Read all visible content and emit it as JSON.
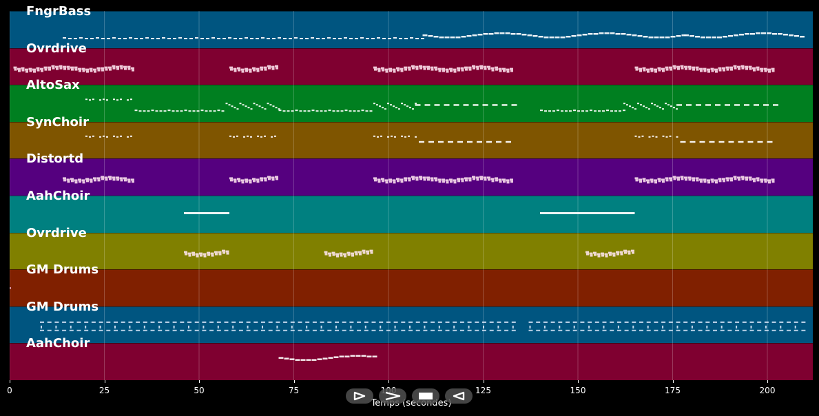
{
  "tracks": [
    {
      "name": "FngrBass",
      "color": "#005580"
    },
    {
      "name": "Ovrdrive",
      "color": "#7f0030"
    },
    {
      "name": "AltoSax",
      "color": "#007f20"
    },
    {
      "name": "SynChoir",
      "color": "#7f5500"
    },
    {
      "name": "Distortd",
      "color": "#55007f"
    },
    {
      "name": "AahChoir",
      "color": "#008080"
    },
    {
      "name": "Ovrdrive",
      "color": "#808000"
    },
    {
      "name": "GM Drums",
      "color": "#802000"
    },
    {
      "name": "GM Drums",
      "color": "#005580"
    },
    {
      "name": "AahChoir",
      "color": "#7f0030"
    }
  ],
  "xaxis": {
    "label": "Temps (secondes)",
    "ticks": [
      "0",
      "25",
      "50",
      "75",
      "100",
      "125",
      "150",
      "175",
      "200"
    ],
    "range": [
      0,
      212
    ]
  },
  "controls": [
    {
      "name": "play",
      "icon": "play-icon"
    },
    {
      "name": "forward",
      "icon": "forward-icon"
    },
    {
      "name": "stop",
      "icon": "stop-icon"
    },
    {
      "name": "rewind",
      "icon": "rewind-icon"
    }
  ],
  "segments": [
    {
      "track": 0,
      "start": 14,
      "end": 109,
      "style": "dash-small"
    },
    {
      "track": 0,
      "start": 109,
      "end": 178,
      "style": "wavy"
    },
    {
      "track": 0,
      "start": 178,
      "end": 209,
      "style": "wavy"
    },
    {
      "track": 1,
      "start": 1,
      "end": 33,
      "style": "dense"
    },
    {
      "track": 1,
      "start": 58,
      "end": 71,
      "style": "dense"
    },
    {
      "track": 1,
      "start": 96,
      "end": 133,
      "style": "dense"
    },
    {
      "track": 1,
      "start": 165,
      "end": 202,
      "style": "dense"
    },
    {
      "track": 2,
      "start": 20,
      "end": 32,
      "style": "dots-high"
    },
    {
      "track": 2,
      "start": 33,
      "end": 57,
      "style": "dash-low"
    },
    {
      "track": 2,
      "start": 57,
      "end": 71,
      "style": "zigzag"
    },
    {
      "track": 2,
      "start": 71,
      "end": 96,
      "style": "dash-low"
    },
    {
      "track": 2,
      "start": 96,
      "end": 107,
      "style": "zigzag"
    },
    {
      "track": 2,
      "start": 107,
      "end": 133,
      "style": "dash-wide"
    },
    {
      "track": 2,
      "start": 140,
      "end": 162,
      "style": "dash-low"
    },
    {
      "track": 2,
      "start": 162,
      "end": 176,
      "style": "zigzag"
    },
    {
      "track": 2,
      "start": 176,
      "end": 202,
      "style": "dash-wide"
    },
    {
      "track": 3,
      "start": 20,
      "end": 32,
      "style": "dots-high"
    },
    {
      "track": 3,
      "start": 58,
      "end": 70,
      "style": "dots-high"
    },
    {
      "track": 3,
      "start": 96,
      "end": 107,
      "style": "dots-high"
    },
    {
      "track": 3,
      "start": 108,
      "end": 133,
      "style": "dash-wide"
    },
    {
      "track": 3,
      "start": 165,
      "end": 176,
      "style": "dots-high"
    },
    {
      "track": 3,
      "start": 177,
      "end": 202,
      "style": "dash-wide"
    },
    {
      "track": 4,
      "start": 14,
      "end": 33,
      "style": "dense"
    },
    {
      "track": 4,
      "start": 58,
      "end": 71,
      "style": "dense"
    },
    {
      "track": 4,
      "start": 96,
      "end": 133,
      "style": "dense"
    },
    {
      "track": 4,
      "start": 165,
      "end": 202,
      "style": "dense"
    },
    {
      "track": 5,
      "start": 46,
      "end": 58,
      "style": "line"
    },
    {
      "track": 5,
      "start": 140,
      "end": 165,
      "style": "line"
    },
    {
      "track": 6,
      "start": 46,
      "end": 58,
      "style": "dense"
    },
    {
      "track": 6,
      "start": 83,
      "end": 96,
      "style": "dense"
    },
    {
      "track": 6,
      "start": 152,
      "end": 165,
      "style": "dense"
    },
    {
      "track": 7,
      "start": 0,
      "end": 1,
      "style": "dot"
    },
    {
      "track": 8,
      "start": 8,
      "end": 133,
      "style": "drums"
    },
    {
      "track": 8,
      "start": 137,
      "end": 209,
      "style": "drums"
    },
    {
      "track": 9,
      "start": 71,
      "end": 96,
      "style": "wavy"
    }
  ]
}
